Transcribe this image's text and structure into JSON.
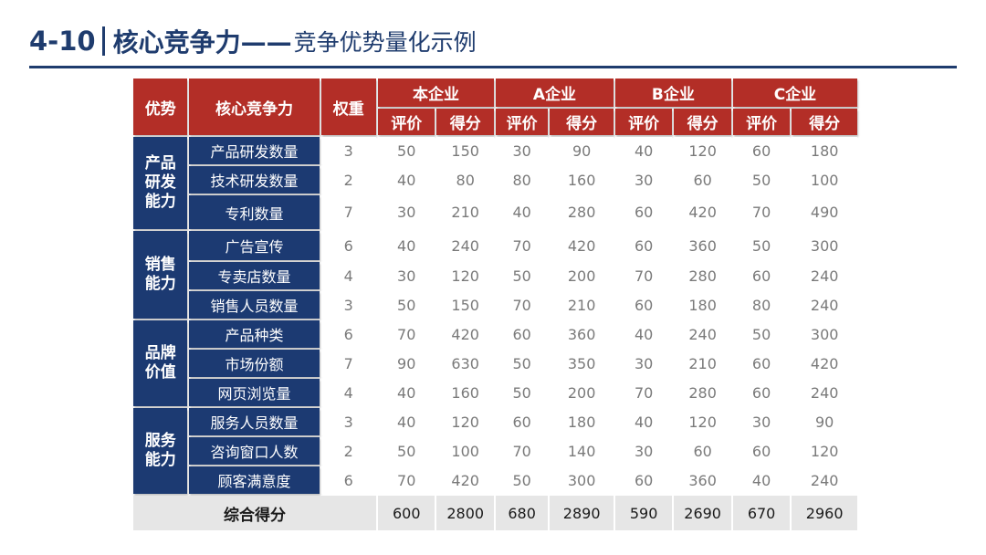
{
  "title": {
    "number": "4-10",
    "main": "核心竞争力——",
    "sub": "竞争优势量化示例"
  },
  "headers": {
    "advantage": "优势",
    "core": "核心竞争力",
    "weight": "权重",
    "companies": [
      "本企业",
      "A企业",
      "B企业",
      "C企业"
    ],
    "eval": "评价",
    "score": "得分"
  },
  "categories": [
    {
      "name": "产品\n研发\n能力",
      "items": [
        {
          "name": "产品研发数量",
          "weight": "3",
          "vals": [
            "50",
            "150",
            "30",
            "90",
            "40",
            "120",
            "60",
            "180"
          ]
        },
        {
          "name": "技术研发数量",
          "weight": "2",
          "vals": [
            "40",
            "80",
            "80",
            "160",
            "30",
            "60",
            "50",
            "100"
          ]
        },
        {
          "name": "专利数量",
          "weight": "7",
          "vals": [
            "30",
            "210",
            "40",
            "280",
            "60",
            "420",
            "70",
            "490"
          ]
        }
      ]
    },
    {
      "name": "销售\n能力",
      "items": [
        {
          "name": "广告宣传",
          "weight": "6",
          "vals": [
            "40",
            "240",
            "70",
            "420",
            "60",
            "360",
            "50",
            "300"
          ]
        },
        {
          "name": "专卖店数量",
          "weight": "4",
          "vals": [
            "30",
            "120",
            "50",
            "200",
            "70",
            "280",
            "60",
            "240"
          ]
        },
        {
          "name": "销售人员数量",
          "weight": "3",
          "vals": [
            "50",
            "150",
            "70",
            "210",
            "60",
            "180",
            "80",
            "240"
          ]
        }
      ]
    },
    {
      "name": "品牌\n价值",
      "items": [
        {
          "name": "产品种类",
          "weight": "6",
          "vals": [
            "70",
            "420",
            "60",
            "360",
            "40",
            "240",
            "50",
            "300"
          ]
        },
        {
          "name": "市场份额",
          "weight": "7",
          "vals": [
            "90",
            "630",
            "50",
            "350",
            "30",
            "210",
            "60",
            "420"
          ]
        },
        {
          "name": "网页浏览量",
          "weight": "4",
          "vals": [
            "40",
            "160",
            "50",
            "200",
            "70",
            "280",
            "60",
            "240"
          ]
        }
      ]
    },
    {
      "name": "服务\n能力",
      "items": [
        {
          "name": "服务人员数量",
          "weight": "3",
          "vals": [
            "40",
            "120",
            "60",
            "180",
            "40",
            "120",
            "30",
            "90"
          ]
        },
        {
          "name": "咨询窗口人数",
          "weight": "2",
          "vals": [
            "50",
            "100",
            "70",
            "140",
            "30",
            "60",
            "60",
            "120"
          ]
        },
        {
          "name": "顾客满意度",
          "weight": "6",
          "vals": [
            "70",
            "420",
            "50",
            "300",
            "60",
            "360",
            "40",
            "240"
          ]
        }
      ]
    }
  ],
  "total": {
    "label": "综合得分",
    "vals": [
      "600",
      "2800",
      "680",
      "2890",
      "590",
      "2690",
      "670",
      "2960"
    ]
  },
  "colors": {
    "header_red": "#b32e27",
    "category_blue": "#1c3a72",
    "title_blue": "#1f3c6e",
    "total_gray": "#e6e6e6"
  }
}
